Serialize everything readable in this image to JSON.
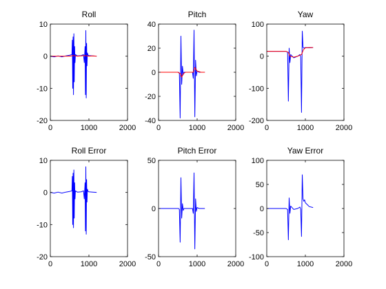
{
  "chart_data": [
    {
      "type": "line",
      "title": "Roll",
      "xlim": [
        0,
        2000
      ],
      "ylim": [
        -20,
        10
      ],
      "xticks": [
        0,
        1000,
        2000
      ],
      "yticks": [
        10,
        0,
        -10,
        -20
      ],
      "grid": false,
      "series": [
        {
          "color": "#0000ff",
          "x": [
            0,
            100,
            200,
            300,
            400,
            500,
            560,
            570,
            580,
            590,
            600,
            610,
            620,
            630,
            640,
            650,
            700,
            800,
            860,
            880,
            900,
            910,
            920,
            930,
            940,
            950,
            960,
            980,
            1000,
            1100,
            1200
          ],
          "y": [
            0,
            -0.2,
            0.1,
            -0.2,
            0.1,
            0.3,
            0.5,
            5,
            -10,
            6,
            -12,
            7,
            -8,
            3,
            -2,
            0.5,
            0.1,
            0.2,
            0.5,
            -2,
            3,
            -12,
            8,
            -13,
            4,
            -3,
            1,
            0.3,
            0.2,
            0.1,
            0
          ]
        },
        {
          "color": "#ff0000",
          "x": [
            0,
            500,
            600,
            700,
            900,
            1000,
            1100,
            1200
          ],
          "y": [
            0,
            0,
            0.2,
            0,
            0.2,
            0,
            0.1,
            0
          ]
        }
      ]
    },
    {
      "type": "line",
      "title": "Pitch",
      "xlim": [
        0,
        2000
      ],
      "ylim": [
        -40,
        40
      ],
      "xticks": [
        0,
        1000,
        2000
      ],
      "yticks": [
        40,
        20,
        0,
        -20,
        -40
      ],
      "grid": false,
      "series": [
        {
          "color": "#0000ff",
          "x": [
            0,
            200,
            400,
            520,
            540,
            560,
            580,
            600,
            620,
            640,
            660,
            700,
            800,
            880,
            900,
            920,
            940,
            960,
            980,
            1000,
            1050,
            1100,
            1200
          ],
          "y": [
            0,
            0,
            0,
            0,
            -1,
            -38,
            30,
            -10,
            5,
            -2,
            0,
            0,
            0,
            0,
            -5,
            35,
            -37,
            10,
            -3,
            1,
            0,
            0,
            0
          ]
        },
        {
          "color": "#ff0000",
          "x": [
            0,
            500,
            560,
            600,
            650,
            700,
            900,
            940,
            980,
            1000,
            1100,
            1200
          ],
          "y": [
            0,
            0,
            -1,
            -4,
            -1,
            0,
            0,
            4,
            2,
            1,
            0,
            0
          ]
        }
      ]
    },
    {
      "type": "line",
      "title": "Yaw",
      "xlim": [
        0,
        2000
      ],
      "ylim": [
        -200,
        100
      ],
      "xticks": [
        0,
        1000,
        2000
      ],
      "yticks": [
        100,
        0,
        -100,
        -200
      ],
      "grid": false,
      "series": [
        {
          "color": "#0000ff",
          "x": [
            0,
            200,
            400,
            500,
            540,
            560,
            580,
            600,
            620,
            700,
            800,
            860,
            880,
            900,
            920,
            940,
            960,
            980,
            1000,
            1100,
            1200
          ],
          "y": [
            15,
            15,
            15,
            15,
            12,
            -140,
            25,
            -20,
            5,
            -5,
            0,
            5,
            -2,
            -175,
            78,
            28,
            25,
            26,
            27,
            26,
            27
          ]
        },
        {
          "color": "#ff0000",
          "x": [
            0,
            500,
            560,
            600,
            700,
            800,
            900,
            950,
            1000,
            1100,
            1200
          ],
          "y": [
            15,
            15,
            12,
            0,
            -3,
            0,
            5,
            20,
            26,
            27,
            27
          ]
        }
      ]
    },
    {
      "type": "line",
      "title": "Roll Error",
      "xlim": [
        0,
        2000
      ],
      "ylim": [
        -20,
        10
      ],
      "xticks": [
        0,
        1000,
        2000
      ],
      "yticks": [
        10,
        0,
        -10,
        -20
      ],
      "grid": false,
      "series": [
        {
          "color": "#0000ff",
          "x": [
            0,
            100,
            200,
            300,
            400,
            500,
            560,
            570,
            580,
            590,
            600,
            610,
            620,
            630,
            640,
            650,
            700,
            800,
            860,
            880,
            900,
            910,
            920,
            930,
            940,
            950,
            960,
            980,
            1000,
            1100,
            1200
          ],
          "y": [
            0,
            -0.2,
            0.1,
            -0.2,
            0.1,
            0.3,
            0.5,
            5,
            -10,
            6,
            -11,
            7,
            -8,
            3,
            -2,
            0.5,
            0.1,
            0.2,
            0.5,
            -2,
            3,
            -12,
            8,
            -13,
            4,
            -3,
            1,
            0.3,
            0.2,
            0.1,
            0
          ]
        }
      ]
    },
    {
      "type": "line",
      "title": "Pitch Error",
      "xlim": [
        0,
        2000
      ],
      "ylim": [
        -50,
        50
      ],
      "xticks": [
        0,
        1000,
        2000
      ],
      "yticks": [
        50,
        0,
        -50
      ],
      "grid": false,
      "series": [
        {
          "color": "#0000ff",
          "x": [
            0,
            200,
            400,
            520,
            540,
            560,
            580,
            600,
            620,
            640,
            660,
            700,
            800,
            880,
            900,
            920,
            940,
            960,
            980,
            1000,
            1050,
            1100,
            1200
          ],
          "y": [
            0,
            0,
            0,
            0,
            -1,
            -35,
            32,
            -10,
            5,
            -2,
            0,
            0,
            0,
            0,
            -5,
            37,
            -42,
            10,
            -3,
            1,
            0,
            0,
            0
          ]
        }
      ]
    },
    {
      "type": "line",
      "title": "Yaw Error",
      "xlim": [
        0,
        2000
      ],
      "ylim": [
        -100,
        100
      ],
      "xticks": [
        0,
        1000,
        2000
      ],
      "yticks": [
        100,
        50,
        0,
        -50,
        -100
      ],
      "grid": false,
      "series": [
        {
          "color": "#0000ff",
          "x": [
            0,
            200,
            400,
            500,
            540,
            560,
            580,
            600,
            620,
            700,
            800,
            860,
            880,
            900,
            920,
            940,
            960,
            980,
            1000,
            1050,
            1100,
            1200
          ],
          "y": [
            0,
            0,
            0,
            0,
            -2,
            -65,
            22,
            -10,
            5,
            -2,
            0,
            3,
            -2,
            -58,
            70,
            20,
            15,
            18,
            12,
            8,
            4,
            2
          ]
        }
      ]
    }
  ]
}
